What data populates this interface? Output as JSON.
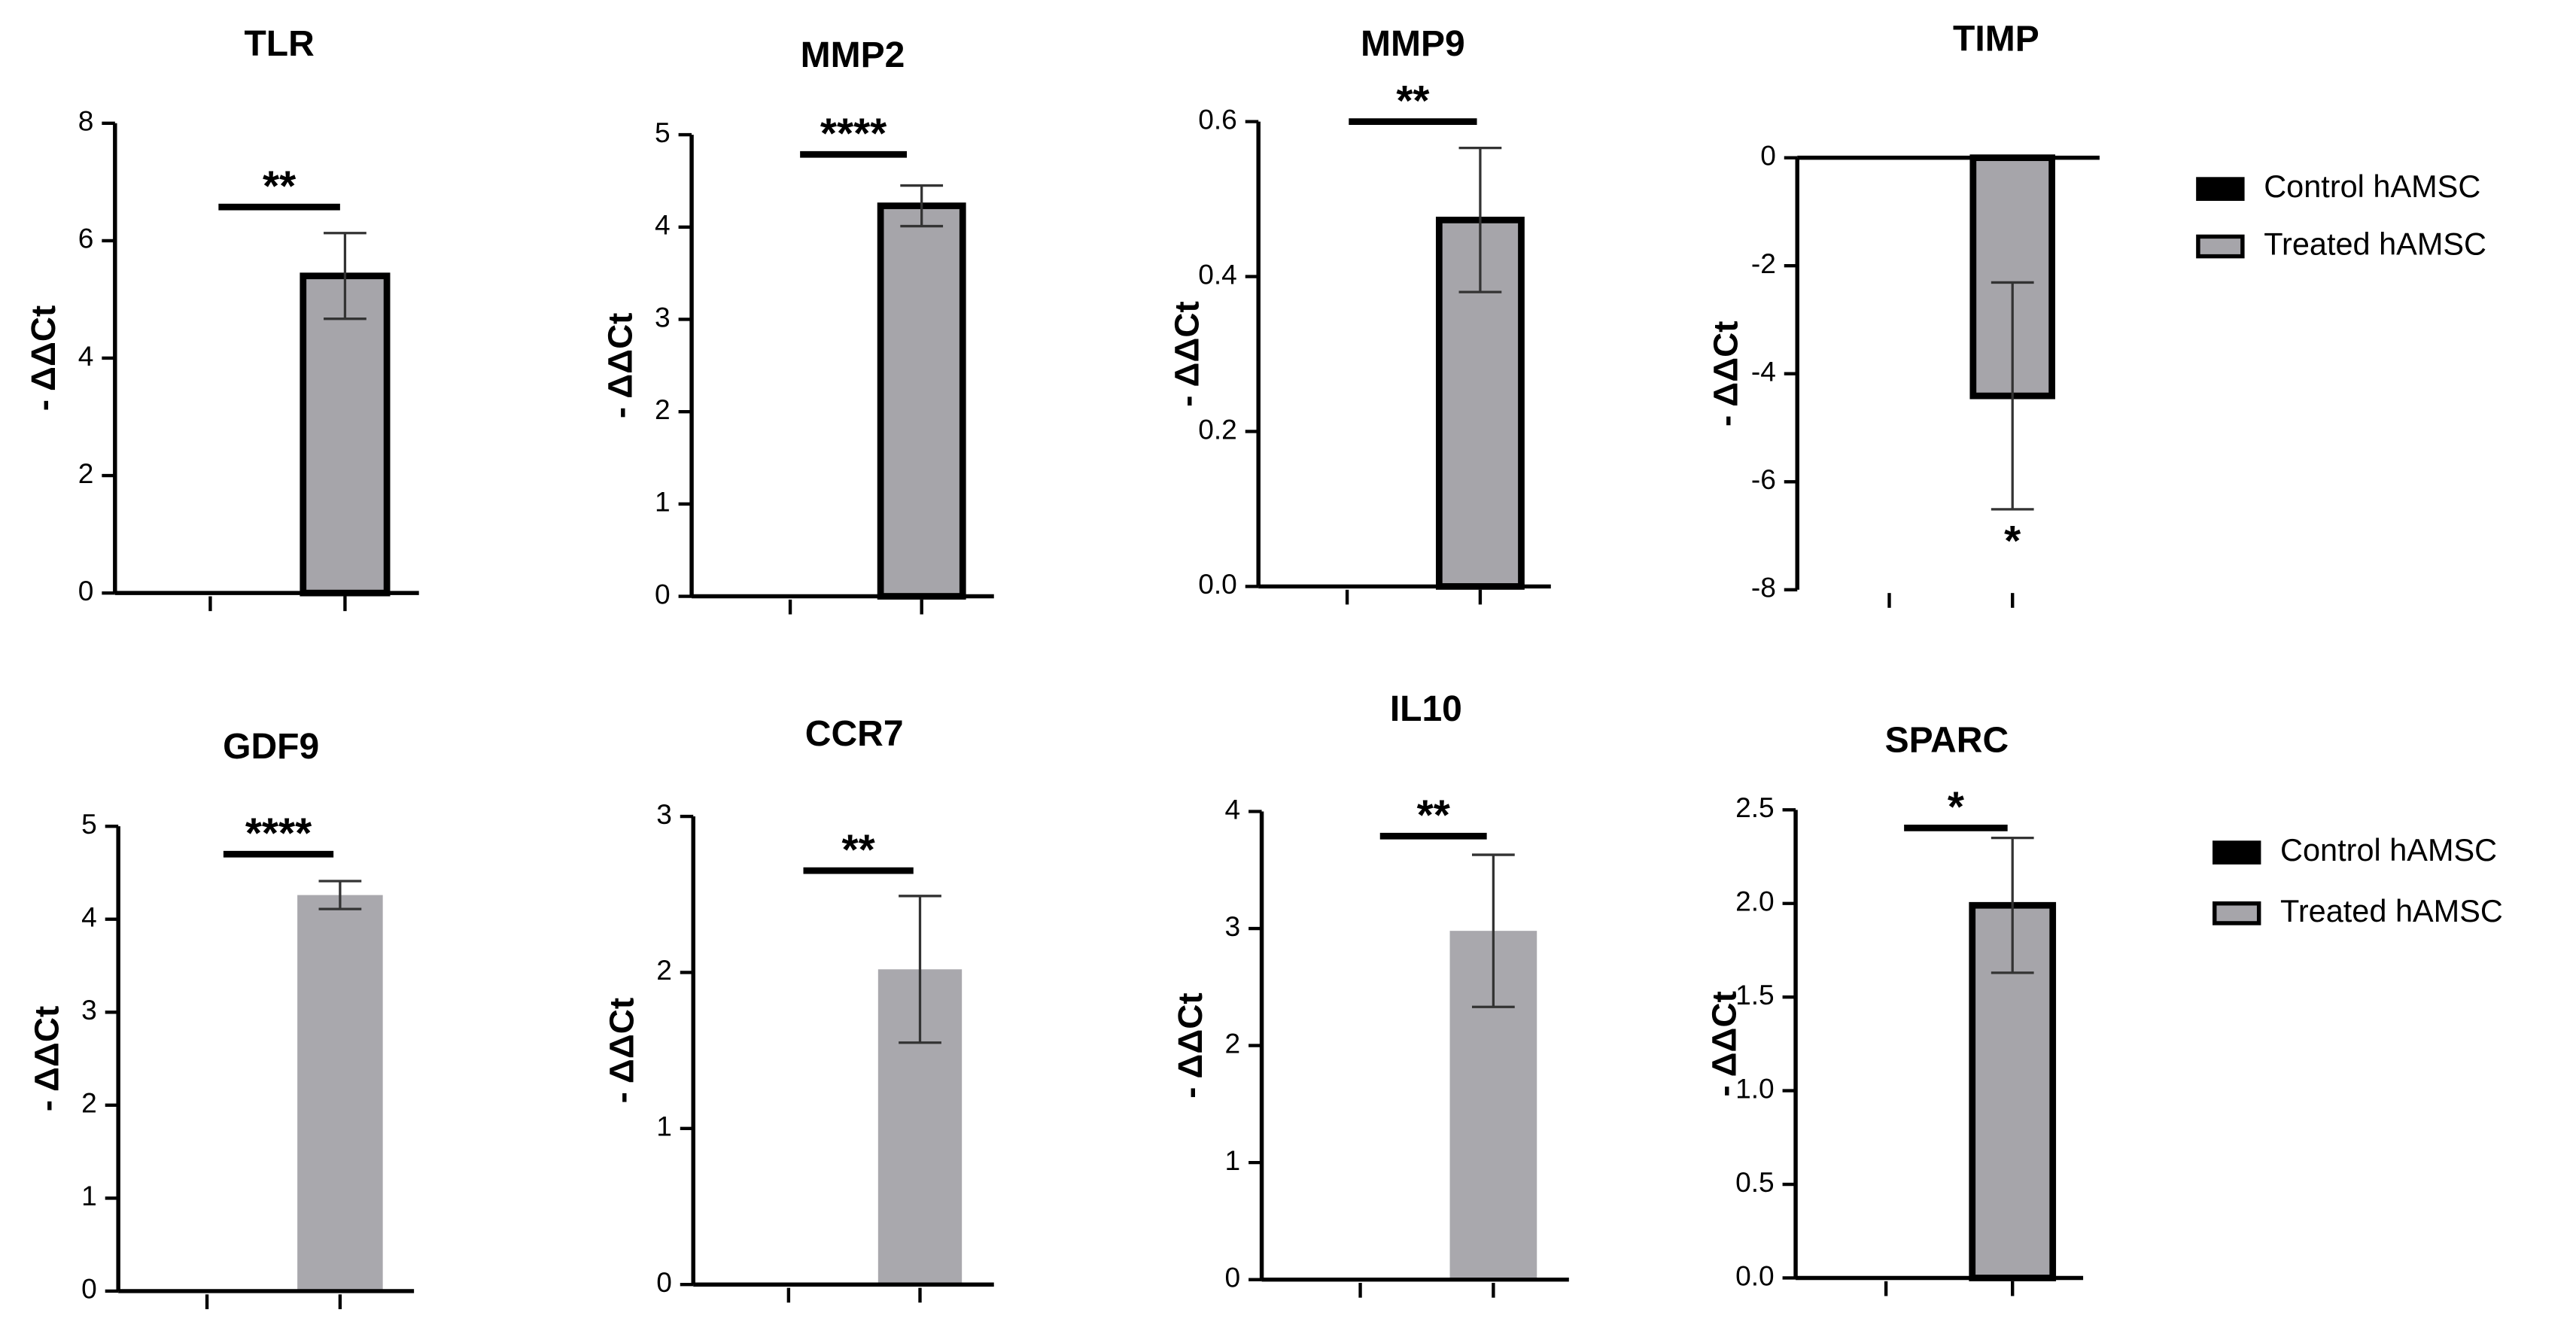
{
  "chart_data": [
    {
      "type": "bar",
      "title": "TLR",
      "ylabel": "- ΔΔCt",
      "categories": [
        null,
        null
      ],
      "values": [
        0,
        5.4
      ],
      "errors": [
        null,
        0.73
      ],
      "colors": [
        "#000000",
        "#a6a5aa"
      ],
      "outline": true,
      "ylim": [
        0,
        8
      ],
      "yticks": [
        0,
        2,
        4,
        6,
        8
      ],
      "annotation": "**",
      "bracket": true
    },
    {
      "type": "bar",
      "title": "MMP2",
      "ylabel": "- ΔΔCt",
      "categories": [
        null,
        null
      ],
      "values": [
        0,
        4.23
      ],
      "errors": [
        null,
        0.22
      ],
      "colors": [
        "#000000",
        "#a6a5aa"
      ],
      "outline": true,
      "ylim": [
        0,
        5
      ],
      "yticks": [
        0,
        1,
        2,
        3,
        4,
        5
      ],
      "annotation": "****",
      "bracket": true
    },
    {
      "type": "bar",
      "title": "MMP9",
      "ylabel": "- ΔΔCt",
      "categories": [
        null,
        null
      ],
      "values": [
        0,
        0.473
      ],
      "errors": [
        null,
        0.093
      ],
      "colors": [
        "#000000",
        "#a6a5aa"
      ],
      "outline": true,
      "ylim": [
        0,
        0.6
      ],
      "yticks": [
        {
          "value": 0,
          "label": "0.0"
        },
        0.2,
        0.4,
        0.6
      ],
      "annotation": "**",
      "bracket": true
    },
    {
      "type": "bar",
      "title": "TIMP",
      "ylabel": "- ΔΔCt",
      "categories": [
        null,
        null
      ],
      "values": [
        0,
        -4.41
      ],
      "errors": [
        null,
        2.1
      ],
      "colors": [
        "#000000",
        "#a6a5aa"
      ],
      "outline": true,
      "ylim": [
        -8,
        0
      ],
      "yticks": [
        0,
        -2,
        -4,
        -6,
        -8
      ],
      "annotation": "*",
      "bracket": false,
      "legend": [
        "Control hAMSC",
        "Treated hAMSC"
      ]
    },
    {
      "type": "bar",
      "title": "GDF9",
      "ylabel": "- ΔΔCt",
      "categories": [
        null,
        null
      ],
      "values": [
        0,
        4.26
      ],
      "errors": [
        null,
        0.15
      ],
      "colors": [
        "#000000",
        "#a9a8ad"
      ],
      "outline": false,
      "ylim": [
        0,
        5
      ],
      "yticks": [
        0,
        1,
        2,
        3,
        4,
        5
      ],
      "annotation": "****",
      "bracket": true
    },
    {
      "type": "bar",
      "title": "CCR7",
      "ylabel": "- ΔΔCt",
      "categories": [
        null,
        null
      ],
      "values": [
        0,
        2.02
      ],
      "errors": [
        null,
        0.47
      ],
      "colors": [
        "#000000",
        "#a9a8ad"
      ],
      "outline": false,
      "ylim": [
        0,
        3
      ],
      "yticks": [
        0,
        1,
        2,
        3
      ],
      "annotation": "**",
      "bracket": true
    },
    {
      "type": "bar",
      "title": "IL10",
      "ylabel": "- ΔΔCt",
      "categories": [
        null,
        null
      ],
      "values": [
        0,
        2.98
      ],
      "errors": [
        null,
        0.65
      ],
      "colors": [
        "#000000",
        "#a9a8ad"
      ],
      "outline": false,
      "ylim": [
        0,
        4
      ],
      "yticks": [
        0,
        1,
        2,
        3,
        4
      ],
      "annotation": "**",
      "bracket": true
    },
    {
      "type": "bar",
      "title": "SPARC",
      "ylabel": "- ΔΔCt",
      "categories": [
        null,
        null
      ],
      "values": [
        0,
        1.99
      ],
      "errors": [
        null,
        0.36
      ],
      "colors": [
        "#000000",
        "#a6a5aa"
      ],
      "outline": true,
      "ylim": [
        0,
        2.5
      ],
      "yticks": [
        {
          "value": 0,
          "label": "0.0"
        },
        0.5,
        {
          "value": 1,
          "label": "1.0"
        },
        1.5,
        {
          "value": 2,
          "label": "2.0"
        },
        2.5
      ],
      "annotation": "*",
      "bracket": true,
      "legend": [
        "Control hAMSC",
        "Treated hAMSC"
      ]
    }
  ]
}
